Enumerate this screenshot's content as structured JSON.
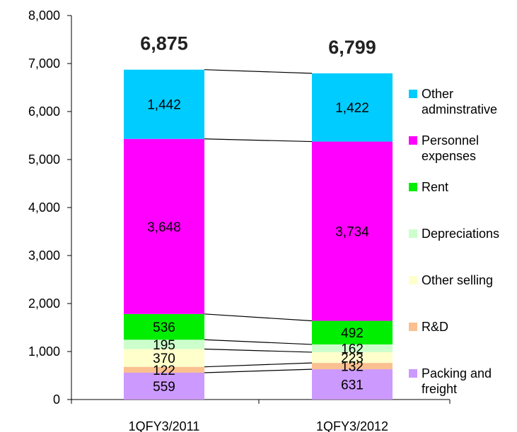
{
  "chart_data": {
    "type": "bar",
    "stacked": true,
    "categories": [
      "1QFY3/2011",
      "1QFY3/2012"
    ],
    "totals": [
      "6,875",
      "6,799"
    ],
    "series": [
      {
        "name": "Packing and freight",
        "legend_lines": [
          "Packing and",
          "freight"
        ],
        "color": "#cc99ff",
        "values": [
          559,
          631
        ],
        "labels": [
          "559",
          "631"
        ]
      },
      {
        "name": "R&D",
        "legend_lines": [
          "R&D"
        ],
        "color": "#fac090",
        "values": [
          122,
          132
        ],
        "labels": [
          "122",
          "132"
        ]
      },
      {
        "name": "Other selling",
        "legend_lines": [
          "Other selling"
        ],
        "color": "#ffffcc",
        "values": [
          370,
          223
        ],
        "labels": [
          "370",
          "223"
        ]
      },
      {
        "name": "Depreciations",
        "legend_lines": [
          "Depreciations"
        ],
        "color": "#ccffcc",
        "values": [
          195,
          162
        ],
        "labels": [
          "195",
          "162"
        ]
      },
      {
        "name": "Rent",
        "legend_lines": [
          "Rent"
        ],
        "color": "#00ee00",
        "values": [
          536,
          492
        ],
        "labels": [
          "536",
          "492"
        ]
      },
      {
        "name": "Personnel expenses",
        "legend_lines": [
          "Personnel",
          "expenses"
        ],
        "color": "#ff00ff",
        "values": [
          3648,
          3734
        ],
        "labels": [
          "3,648",
          "3,734"
        ]
      },
      {
        "name": "Other adminstrative",
        "legend_lines": [
          "Other",
          "adminstrative"
        ],
        "color": "#00ccff",
        "values": [
          1442,
          1422
        ],
        "labels": [
          "1,442",
          "1,422"
        ]
      }
    ],
    "ylim": [
      0,
      8000
    ],
    "yticks": [
      0,
      1000,
      2000,
      3000,
      4000,
      5000,
      6000,
      7000,
      8000
    ],
    "ytick_labels": [
      "0",
      "1,000",
      "2,000",
      "3,000",
      "4,000",
      "5,000",
      "6,000",
      "7,000",
      "8,000"
    ],
    "title": "",
    "xlabel": "",
    "ylabel": "",
    "legend": "right",
    "grid": false,
    "connector_lines": true
  }
}
